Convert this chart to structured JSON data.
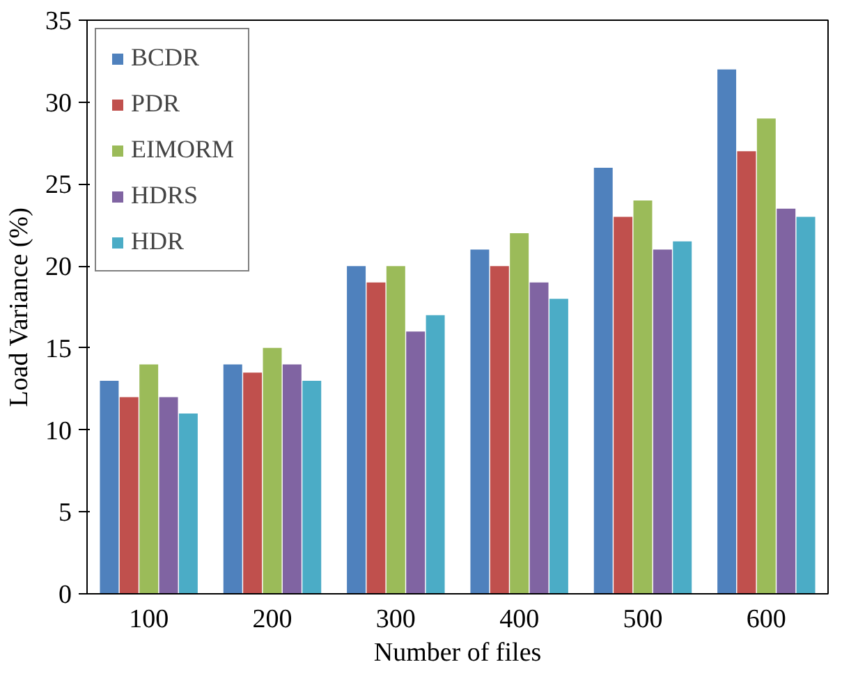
{
  "chart_data": {
    "type": "bar",
    "xlabel": "Number of files",
    "ylabel": "Load Variance (%)",
    "categories": [
      "100",
      "200",
      "300",
      "400",
      "500",
      "600"
    ],
    "series": [
      {
        "name": "BCDR",
        "color": "#4f81bd",
        "values": [
          13,
          14,
          20,
          21,
          26,
          32
        ]
      },
      {
        "name": "PDR",
        "color": "#c0504d",
        "values": [
          12,
          13.5,
          19,
          20,
          23,
          27
        ]
      },
      {
        "name": "EIMORM",
        "color": "#9bbb59",
        "values": [
          14,
          15,
          20,
          22,
          24,
          29
        ]
      },
      {
        "name": "HDRS",
        "color": "#8064a2",
        "values": [
          12,
          14,
          16,
          19,
          21,
          23.5
        ]
      },
      {
        "name": "HDR",
        "color": "#4bacc6",
        "values": [
          11,
          13,
          17,
          18,
          21.5,
          23
        ]
      }
    ],
    "ylim": [
      0,
      35
    ],
    "yticks": [
      0,
      5,
      10,
      15,
      20,
      25,
      30,
      35
    ],
    "grid": false,
    "legend": "top left"
  }
}
